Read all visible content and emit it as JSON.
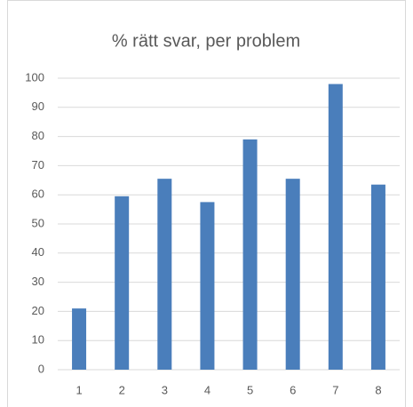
{
  "chart_data": {
    "type": "bar",
    "title": "% rätt svar, per problem",
    "categories": [
      "1",
      "2",
      "3",
      "4",
      "5",
      "6",
      "7",
      "8"
    ],
    "values": [
      21,
      59.5,
      65.5,
      57.5,
      79,
      65.5,
      98,
      63.5
    ],
    "color": "#4a7ebb",
    "ylim": [
      0,
      100
    ],
    "yticks": [
      0,
      10,
      20,
      30,
      40,
      50,
      60,
      70,
      80,
      90,
      100
    ],
    "grid": true
  }
}
